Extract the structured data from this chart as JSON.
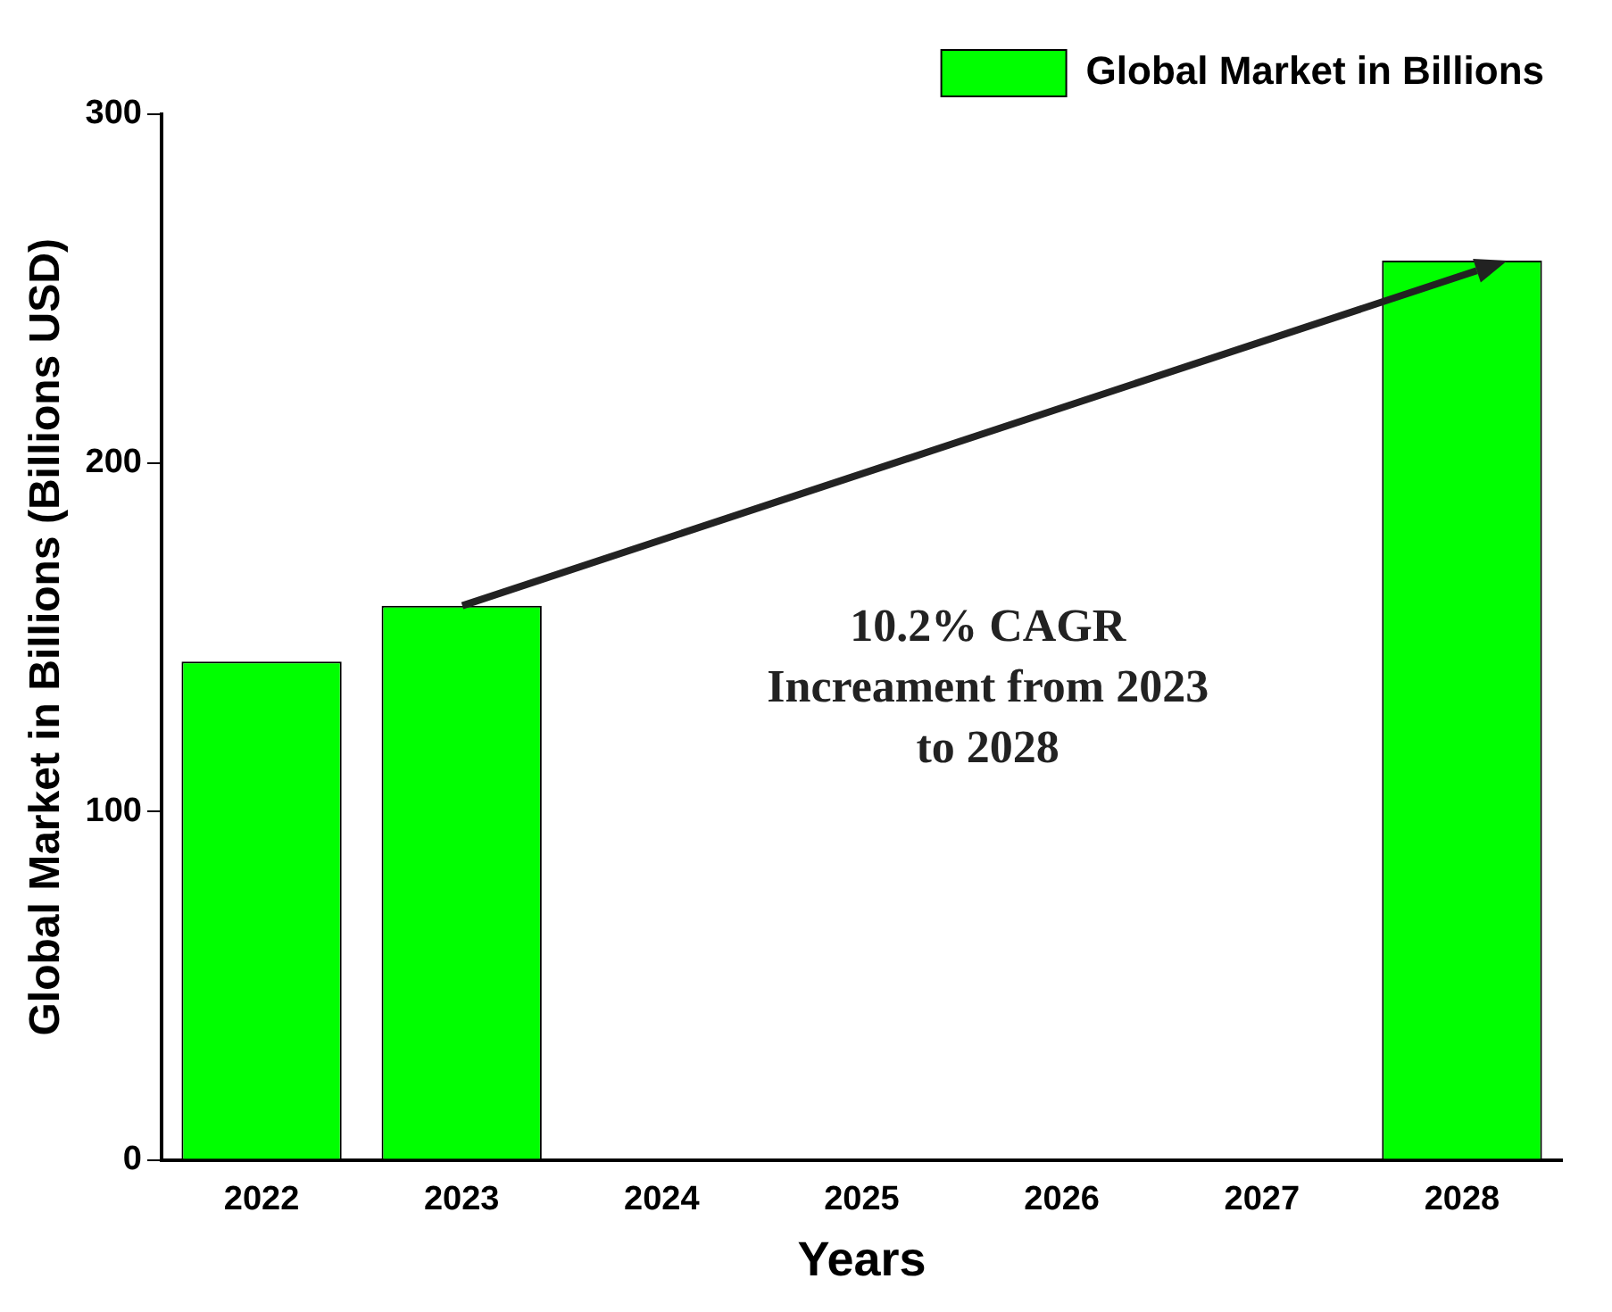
{
  "chart_data": {
    "type": "bar",
    "xlabel": "Years",
    "ylabel": "Global Market in Billions (Billions USD)",
    "categories": [
      "2022",
      "2023",
      "2024",
      "2025",
      "2026",
      "2027",
      "2028"
    ],
    "series": [
      {
        "name": "Global Market in Billions",
        "color": "#00ff00",
        "values": [
          143,
          159,
          null,
          null,
          null,
          null,
          258
        ]
      }
    ],
    "ylim": [
      0,
      300
    ],
    "yticks": [
      0,
      100,
      200,
      300
    ],
    "grid": false,
    "legend": "top right",
    "annotations": [
      "10.2% CAGR\nIncreament from 2023\nto 2028"
    ]
  }
}
